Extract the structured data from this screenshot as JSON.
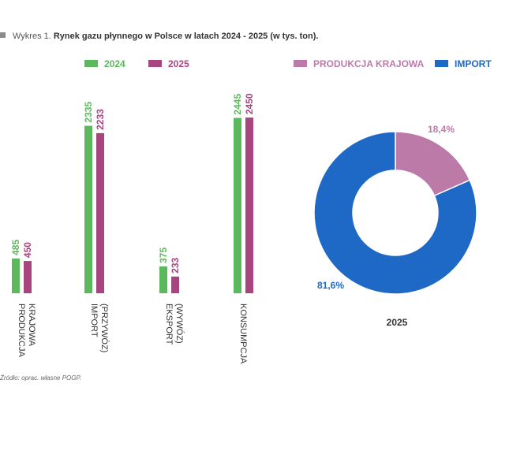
{
  "caption": {
    "prefix": "Wykres 1.",
    "title": "Rynek gazu płynnego w Polsce w latach 2024 - 2025 (w tys. ton)."
  },
  "source": "Źródło: oprac. własne POGP.",
  "chart_data": [
    {
      "type": "bar",
      "categories": [
        [
          "PRODUKCJA",
          "KRAJOWA"
        ],
        [
          "IMPORT",
          "(PRZYWÓZ)"
        ],
        [
          "EKSPORT",
          "(WYWÓZ)"
        ],
        [
          "KONSUMPCJA"
        ]
      ],
      "series": [
        {
          "name": "2024",
          "values": [
            485,
            2335,
            375,
            2445
          ],
          "color": "#5cb85c"
        },
        {
          "name": "2025",
          "values": [
            450,
            2233,
            233,
            2450
          ],
          "color": "#a8457f"
        }
      ],
      "ylim": [
        0,
        3100
      ],
      "legend": "top"
    },
    {
      "type": "pie",
      "title": "2025",
      "slices": [
        {
          "name": "PRODUKCJA KRAJOWA",
          "value": 18.4,
          "label": "18,4%",
          "color": "#bb7aa8"
        },
        {
          "name": "IMPORT",
          "value": 81.6,
          "label": "81,6%",
          "color": "#1e69c6"
        }
      ],
      "legend": "top"
    }
  ]
}
